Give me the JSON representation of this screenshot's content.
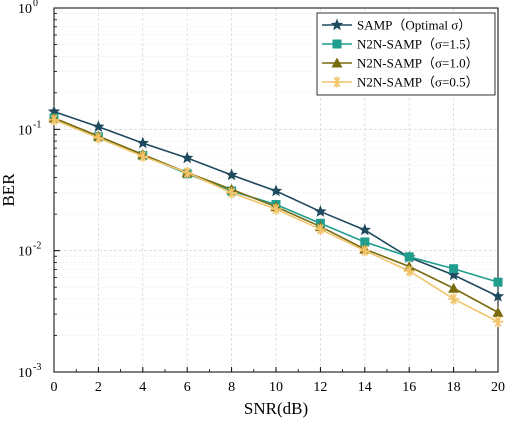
{
  "chart_data": {
    "type": "line",
    "title": "",
    "xlabel": "SNR(dB)",
    "ylabel": "BER",
    "xlim": [
      0,
      20
    ],
    "ylim": [
      0.001,
      1
    ],
    "yscale": "log",
    "grid": true,
    "legend_position": "top-right",
    "x": [
      0,
      2,
      4,
      6,
      8,
      10,
      12,
      14,
      16,
      18,
      20
    ],
    "x_ticks": [
      "0",
      "2",
      "4",
      "6",
      "8",
      "10",
      "12",
      "14",
      "16",
      "18",
      "20"
    ],
    "y_ticks": [
      {
        "value": 1,
        "base": "10",
        "exp": "0"
      },
      {
        "value": 0.1,
        "base": "10",
        "exp": "-1"
      },
      {
        "value": 0.01,
        "base": "10",
        "exp": "-2"
      },
      {
        "value": 0.001,
        "base": "10",
        "exp": "-3"
      }
    ],
    "series": [
      {
        "name": "SAMP（Optimal σ）",
        "color": "#1f4a5e",
        "marker": "star",
        "values": [
          0.14,
          0.105,
          0.077,
          0.058,
          0.042,
          0.031,
          0.021,
          0.0148,
          0.0088,
          0.0063,
          0.0042
        ]
      },
      {
        "name": "N2N-SAMP（σ=1.5）",
        "color": "#1f9e8e",
        "marker": "square",
        "values": [
          0.124,
          0.087,
          0.061,
          0.043,
          0.031,
          0.024,
          0.0168,
          0.0118,
          0.0089,
          0.0071,
          0.0055
        ]
      },
      {
        "name": "N2N-SAMP（σ=1.0）",
        "color": "#7a6a10",
        "marker": "triangle",
        "values": [
          0.124,
          0.088,
          0.062,
          0.044,
          0.032,
          0.023,
          0.0158,
          0.0103,
          0.0074,
          0.0049,
          0.0031
        ]
      },
      {
        "name": "N2N-SAMP（σ=0.5）",
        "color": "#f2c46a",
        "marker": "asterisk",
        "values": [
          0.12,
          0.085,
          0.06,
          0.044,
          0.03,
          0.022,
          0.015,
          0.01,
          0.0068,
          0.004,
          0.0026
        ]
      }
    ]
  }
}
